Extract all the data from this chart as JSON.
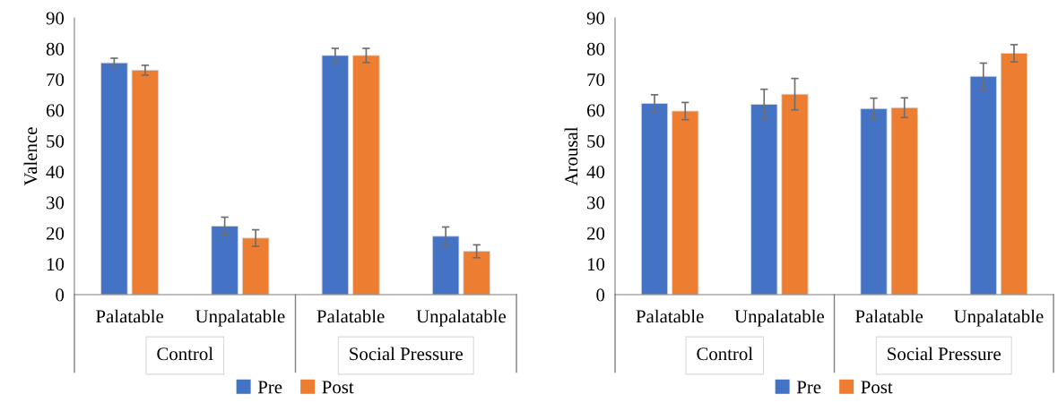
{
  "chart_data": [
    {
      "type": "bar",
      "ylabel": "Valence",
      "categories": [
        "Palatable",
        "Unpalatable",
        "Palatable",
        "Unpalatable"
      ],
      "series": [
        {
          "name": "Pre",
          "color": "#4472c4",
          "values": [
            75.4,
            22.3,
            77.8,
            19.0
          ],
          "errors": [
            1.5,
            2.9,
            2.3,
            3.0
          ]
        },
        {
          "name": "Post",
          "color": "#ed7d31",
          "values": [
            73.0,
            18.4,
            77.8,
            14.1
          ],
          "errors": [
            1.6,
            2.7,
            2.3,
            2.1
          ]
        }
      ],
      "annotations": [
        "Control",
        "Social Pressure"
      ],
      "ylim": [
        0,
        90
      ],
      "yticks": [
        0,
        10,
        20,
        30,
        40,
        50,
        60,
        70,
        80,
        90
      ],
      "grid": false,
      "legend": "bottom"
    },
    {
      "type": "bar",
      "ylabel": "Arousal",
      "categories": [
        "Palatable",
        "Unpalatable",
        "Palatable",
        "Unpalatable"
      ],
      "series": [
        {
          "name": "Pre",
          "color": "#4472c4",
          "values": [
            62.2,
            61.9,
            60.5,
            71.0
          ],
          "errors": [
            2.8,
            4.9,
            3.4,
            4.3
          ]
        },
        {
          "name": "Post",
          "color": "#ed7d31",
          "values": [
            59.7,
            65.2,
            60.8,
            78.5
          ],
          "errors": [
            2.8,
            5.1,
            3.2,
            2.8
          ]
        }
      ],
      "annotations": [
        "Control",
        "Social Pressure"
      ],
      "ylim": [
        0,
        90
      ],
      "yticks": [
        0,
        10,
        20,
        30,
        40,
        50,
        60,
        70,
        80,
        90
      ],
      "grid": false,
      "legend": "bottom"
    }
  ]
}
